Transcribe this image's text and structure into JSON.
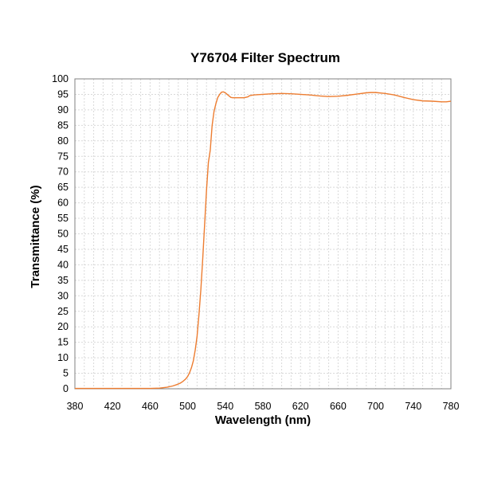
{
  "chart_data": {
    "type": "line",
    "title": "Y76704 Filter Spectrum",
    "xlabel": "Wavelength (nm)",
    "ylabel": "Transmittance (%)",
    "xlim": [
      380,
      780
    ],
    "ylim": [
      0,
      100
    ],
    "xticks": [
      380,
      420,
      460,
      500,
      540,
      580,
      620,
      660,
      700,
      740,
      780
    ],
    "yticks": [
      0,
      5,
      10,
      15,
      20,
      25,
      30,
      35,
      40,
      45,
      50,
      55,
      60,
      65,
      70,
      75,
      80,
      85,
      90,
      95,
      100
    ],
    "grid": true,
    "colors": {
      "series": "#ed7d31",
      "grid": "#d9d9d9",
      "frame": "#808080"
    },
    "series": [
      {
        "x": [
          380,
          400,
          420,
          440,
          460,
          470,
          478,
          484,
          488,
          492,
          495,
          498,
          500,
          502,
          504,
          506,
          508,
          510,
          512,
          514,
          516,
          518,
          520,
          522,
          524,
          526,
          528,
          530,
          532,
          534,
          536,
          538,
          540,
          542,
          544,
          546,
          548,
          550,
          555,
          560,
          564,
          566,
          570,
          580,
          590,
          600,
          610,
          620,
          630,
          640,
          650,
          660,
          670,
          680,
          690,
          695,
          700,
          710,
          720,
          730,
          740,
          750,
          760,
          770,
          775,
          780
        ],
        "y": [
          0.1,
          0.1,
          0.1,
          0.1,
          0.1,
          0.2,
          0.5,
          0.9,
          1.3,
          1.8,
          2.4,
          3.2,
          4.0,
          5.2,
          6.8,
          9.0,
          12.5,
          17.0,
          24.0,
          32.0,
          42.0,
          53.0,
          64.0,
          73.0,
          77.0,
          85.0,
          89.5,
          92.0,
          94.0,
          95.0,
          95.7,
          95.8,
          95.5,
          95.0,
          94.5,
          94.0,
          93.9,
          93.9,
          93.9,
          93.9,
          94.2,
          94.6,
          94.8,
          95.0,
          95.2,
          95.3,
          95.2,
          95.0,
          94.8,
          94.5,
          94.3,
          94.4,
          94.7,
          95.1,
          95.5,
          95.6,
          95.6,
          95.3,
          94.8,
          94.0,
          93.3,
          92.9,
          92.8,
          92.6,
          92.6,
          92.8
        ]
      }
    ]
  }
}
